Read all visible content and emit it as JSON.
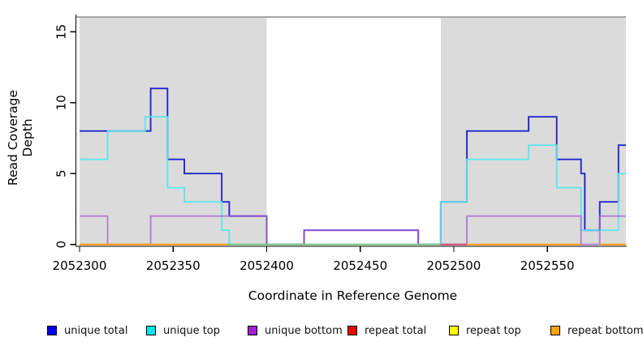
{
  "chart_data": {
    "type": "line",
    "subtype": "step-coverage",
    "xlabel": "Coordinate in Reference Genome",
    "ylabel": "Read Coverage Depth",
    "xlim": [
      2052300,
      2052592
    ],
    "ylim": [
      0,
      16.1
    ],
    "x_ticks": [
      2052300,
      2052350,
      2052400,
      2052450,
      2052500,
      2052550
    ],
    "x_tick_labels": [
      "2052300",
      "2052350",
      "2052400",
      "2052450",
      "2052500",
      "2052550"
    ],
    "y_ticks": [
      0,
      5,
      10,
      15
    ],
    "y_tick_labels": [
      "0",
      "5",
      "10",
      "15"
    ],
    "grid": false,
    "shaded_regions": [
      {
        "x0": 2052300,
        "x1": 2052400
      },
      {
        "x0": 2052493,
        "x1": 2052592
      }
    ],
    "series": [
      {
        "name": "unique total",
        "color": "#2424CB",
        "opacity": 1,
        "steps": [
          [
            2052300,
            8
          ],
          [
            2052338,
            11
          ],
          [
            2052347,
            6
          ],
          [
            2052356,
            5
          ],
          [
            2052376,
            3
          ],
          [
            2052380,
            2
          ],
          [
            2052400,
            0
          ],
          [
            2052420,
            1
          ],
          [
            2052481,
            0
          ],
          [
            2052493,
            3
          ],
          [
            2052507,
            8
          ],
          [
            2052540,
            9
          ],
          [
            2052555,
            6
          ],
          [
            2052568,
            5
          ],
          [
            2052570,
            1
          ],
          [
            2052578,
            3
          ],
          [
            2052588,
            7
          ]
        ]
      },
      {
        "name": "unique top",
        "color": "#59E6EE",
        "opacity": 0.95,
        "steps": [
          [
            2052300,
            6
          ],
          [
            2052315,
            8
          ],
          [
            2052335,
            9
          ],
          [
            2052347,
            4
          ],
          [
            2052356,
            3
          ],
          [
            2052376,
            1
          ],
          [
            2052380,
            0
          ],
          [
            2052493,
            3
          ],
          [
            2052507,
            6
          ],
          [
            2052540,
            7
          ],
          [
            2052555,
            4
          ],
          [
            2052568,
            1
          ],
          [
            2052588,
            5
          ]
        ]
      },
      {
        "name": "unique bottom",
        "color": "#A55FD2",
        "opacity": 0.75,
        "steps": [
          [
            2052300,
            2
          ],
          [
            2052315,
            0
          ],
          [
            2052338,
            2
          ],
          [
            2052400,
            0
          ],
          [
            2052420,
            1
          ],
          [
            2052481,
            0
          ],
          [
            2052507,
            2
          ],
          [
            2052568,
            0
          ],
          [
            2052578,
            2
          ]
        ]
      }
    ],
    "baseline_segments": [
      {
        "name": "repeat bottom",
        "color": "#FF9D0C",
        "x0": 2052300,
        "x1": 2052379
      },
      {
        "name": "repeat top",
        "color": "#7CC87C",
        "x0": 2052379,
        "x1": 2052493
      },
      {
        "name": "repeat total",
        "color": "#D14B72",
        "x0": 2052493,
        "x1": 2052507
      },
      {
        "name": "repeat bottom",
        "color": "#FF9D0C",
        "x0": 2052507,
        "x1": 2052568
      },
      {
        "name": "repeat bottom",
        "color": "#FF9D0C",
        "x0": 2052578,
        "x1": 2052592
      }
    ],
    "colors": {
      "panel_shade": "#DBDBDB",
      "top_border": "#8A8A8A",
      "axis": "#000000",
      "background": "#FFFFFF"
    }
  },
  "legend": {
    "items": [
      {
        "label": "unique total",
        "color": "#0000EE"
      },
      {
        "label": "unique top",
        "color": "#00E5EE"
      },
      {
        "label": "unique bottom",
        "color": "#A020D0"
      },
      {
        "label": "repeat total",
        "color": "#EE0000"
      },
      {
        "label": "repeat top",
        "color": "#FFFF00"
      },
      {
        "label": "repeat bottom",
        "color": "#FFA500"
      }
    ]
  }
}
